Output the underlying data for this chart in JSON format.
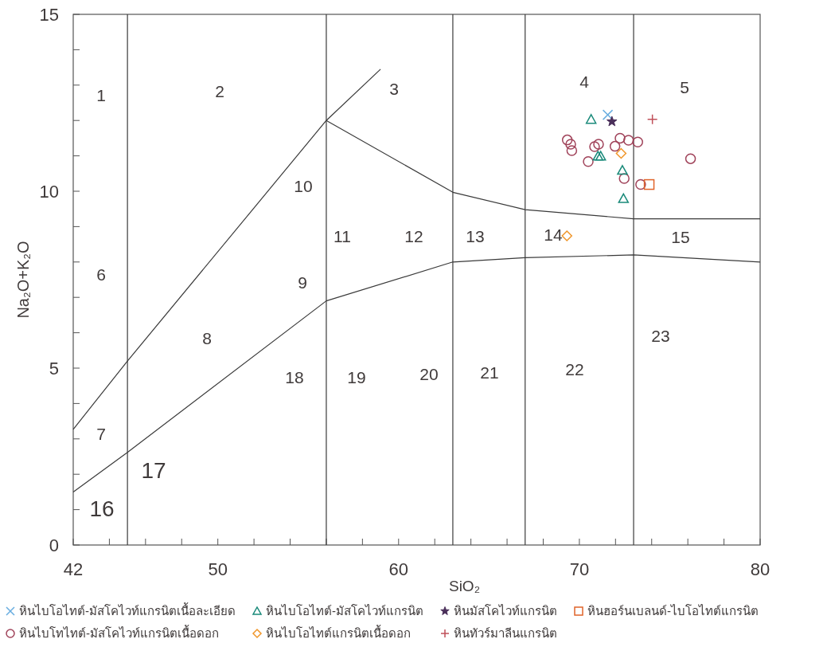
{
  "chart_data": {
    "type": "scatter",
    "xlabel": "SiO₂",
    "ylabel": "Na₂O+K₂O",
    "xlim": [
      42,
      80
    ],
    "ylim": [
      0,
      15
    ],
    "xticks": [
      42,
      {
        "value": 44,
        "label": null
      },
      {
        "value": 46,
        "label": null
      },
      {
        "value": 48,
        "label": null
      },
      50,
      {
        "value": 52,
        "label": null
      },
      {
        "value": 54,
        "label": null
      },
      {
        "value": 56,
        "label": null
      },
      {
        "value": 58,
        "label": null
      },
      60,
      {
        "value": 62,
        "label": null
      },
      {
        "value": 64,
        "label": null
      },
      {
        "value": 66,
        "label": null
      },
      {
        "value": 68,
        "label": null
      },
      70,
      {
        "value": 72,
        "label": null
      },
      {
        "value": 74,
        "label": null
      },
      {
        "value": 76,
        "label": null
      },
      {
        "value": 78,
        "label": null
      },
      80
    ],
    "yticks": [
      0,
      {
        "value": 1,
        "label": null
      },
      {
        "value": 2,
        "label": null
      },
      {
        "value": 3,
        "label": null
      },
      {
        "value": 4,
        "label": null
      },
      5,
      {
        "value": 6,
        "label": null
      },
      {
        "value": 7,
        "label": null
      },
      {
        "value": 8,
        "label": null
      },
      {
        "value": 9,
        "label": null
      },
      10,
      {
        "value": 11,
        "label": null
      },
      {
        "value": 12,
        "label": null
      },
      {
        "value": 13,
        "label": null
      },
      {
        "value": 14,
        "label": null
      },
      15
    ],
    "legend": "bottom",
    "ref_lines": [
      {
        "axis": "x",
        "value": 45,
        "color": "#3a3a3a"
      },
      {
        "axis": "x",
        "value": 56,
        "color": "#3a3a3a"
      },
      {
        "axis": "x",
        "value": 63,
        "color": "#3a3a3a"
      },
      {
        "axis": "x",
        "value": 67,
        "color": "#3a3a3a"
      },
      {
        "axis": "x",
        "value": 73,
        "color": "#3a3a3a"
      }
    ],
    "series": [
      {
        "type": "line",
        "color": "#3a3a3a",
        "marker": "none",
        "x": [
          42,
          45,
          56,
          59
        ],
        "values": [
          3.27,
          5.2,
          12,
          13.45
        ]
      },
      {
        "type": "line",
        "color": "#3a3a3a",
        "marker": "none",
        "x": [
          42,
          45,
          56,
          63,
          67,
          73,
          80
        ],
        "values": [
          1.5,
          2.62,
          6.9,
          8.0,
          8.12,
          8.2,
          8.0
        ]
      },
      {
        "type": "line",
        "color": "#3a3a3a",
        "marker": "none",
        "x": [
          56,
          63,
          67,
          73,
          80
        ],
        "values": [
          12,
          9.97,
          9.48,
          9.22,
          9.22
        ]
      },
      {
        "name": "หินไบโอไทต์-มัสโคไวท์แกรนิตเนื้อละเอียด",
        "color": "#6aaee0",
        "marker": "cross",
        "x": [
          71.57
        ],
        "values": [
          12.16
        ]
      },
      {
        "name": "หินไบโทไทต์-มัสโคไวท์แกรนิตเนื้อดอก",
        "color": "#a0435a",
        "marker": "circle",
        "x": [
          69.33,
          69.52,
          69.58,
          70.49,
          70.84,
          71.06,
          71.97,
          72.25,
          72.72,
          73.23,
          72.48,
          73.39,
          76.15
        ],
        "values": [
          11.45,
          11.33,
          11.15,
          10.84,
          11.26,
          11.33,
          11.27,
          11.5,
          11.44,
          11.39,
          10.36,
          10.19,
          10.92
        ]
      },
      {
        "name": "หินไบโอไทต์-มัสโคไวท์แกรนิต",
        "color": "#1a8a7a",
        "marker": "triangle",
        "x": [
          70.65,
          71.03,
          71.18,
          72.38,
          72.44
        ],
        "values": [
          12.03,
          10.99,
          10.99,
          10.59,
          9.79
        ]
      },
      {
        "name": "หินไบโอไทต์แกรนิตเนื้อดอก",
        "color": "#f0962a",
        "marker": "diamond",
        "x": [
          72.31,
          69.31
        ],
        "values": [
          11.07,
          8.74
        ]
      },
      {
        "name": "หินมัสโคไวท์แกรนิต",
        "color": "#4a2f5a",
        "marker": "star",
        "x": [
          71.8
        ],
        "values": [
          11.97
        ]
      },
      {
        "name": "หินทัวร์มาลีนแกรนิต",
        "color": "#c0505a",
        "marker": "plus",
        "x": [
          74.04
        ],
        "values": [
          12.03
        ]
      },
      {
        "name": "หินฮอร์นเบลนด์-ไบโอไทต์แกรนิต",
        "color": "#e0642a",
        "marker": "square",
        "x": [
          73.86
        ],
        "values": [
          10.19
        ]
      }
    ],
    "annotations": [
      "1",
      "2",
      "3",
      "4",
      "5",
      "6",
      "7",
      "8",
      "9",
      "10",
      "11",
      "12",
      "13",
      "14",
      "15",
      "16",
      "17",
      "18",
      "19",
      "20",
      "21",
      "22",
      "23"
    ]
  }
}
